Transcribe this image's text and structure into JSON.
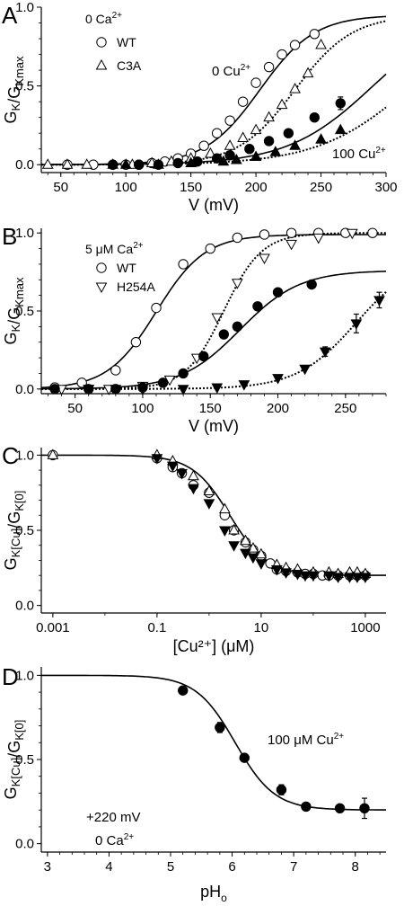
{
  "figure": {
    "panels": [
      {
        "letter": "A",
        "legend": {
          "title_text": "0 Ca",
          "title_sup": "2+",
          "entries": [
            {
              "label": "WT",
              "marker": "circle-open"
            },
            {
              "label": "C3A",
              "marker": "triangle-up-open"
            }
          ]
        },
        "annotations": [
          {
            "text": "0 Cu",
            "sup": "2+"
          },
          {
            "text": "100 Cu",
            "sup": "2+"
          }
        ]
      },
      {
        "letter": "B",
        "legend": {
          "title_text": "5 μM Ca",
          "title_sup": "2+",
          "entries": [
            {
              "label": "WT",
              "marker": "circle-open"
            },
            {
              "label": "H254A",
              "marker": "triangle-down-open"
            }
          ]
        },
        "annotations": []
      },
      {
        "letter": "C",
        "legend": null,
        "annotations": []
      },
      {
        "letter": "D",
        "legend": null,
        "annotations": [
          {
            "text": "100 μM Cu",
            "sup": "2+"
          },
          {
            "text": "+220 mV",
            "sup": ""
          },
          {
            "text": "0 Ca",
            "sup": "2+"
          }
        ]
      }
    ]
  },
  "chart_data": [
    {
      "type": "scatter",
      "panel": "A",
      "xlabel": "V (mV)",
      "ylabel": "G_K/G_Kmax",
      "xlim": [
        35,
        300
      ],
      "ylim": [
        -0.05,
        1.0
      ],
      "xticks": [
        50,
        100,
        150,
        200,
        250,
        300
      ],
      "yticks": [
        0.0,
        0.5,
        1.0
      ],
      "ytick_labels": [
        "0.0",
        "0.5",
        "1.0"
      ],
      "series": [
        {
          "name": "WT",
          "marker": "circle-open",
          "x": [
            55,
            75,
            90,
            100,
            110,
            120,
            130,
            140,
            150,
            160,
            170,
            180,
            190,
            200,
            210,
            220,
            230,
            245
          ],
          "y": [
            0.0,
            0.0,
            0.0,
            0.0,
            0.0,
            0.01,
            0.02,
            0.04,
            0.07,
            0.12,
            0.2,
            0.28,
            0.4,
            0.52,
            0.62,
            0.7,
            0.76,
            0.83
          ]
        },
        {
          "x": [
            40,
            55,
            70,
            90,
            105,
            120,
            135,
            150,
            165,
            180,
            190,
            200,
            210,
            220,
            230,
            240,
            250
          ],
          "y": [
            0.0,
            0.0,
            0.0,
            0.0,
            0.0,
            0.01,
            0.02,
            0.04,
            0.07,
            0.12,
            0.17,
            0.22,
            0.3,
            0.38,
            0.48,
            0.58,
            0.76
          ],
          "marker": "triangle-up-open"
        },
        {
          "x": [
            90,
            110,
            125,
            140,
            155,
            170,
            180,
            195,
            210,
            225,
            245,
            265
          ],
          "y": [
            0.0,
            0.0,
            0.0,
            0.01,
            0.02,
            0.04,
            0.06,
            0.1,
            0.15,
            0.2,
            0.3,
            0.39
          ],
          "y_err": [
            0,
            0,
            0,
            0,
            0,
            0,
            0,
            0,
            0,
            0,
            0,
            0.04
          ],
          "marker": "circle-filled"
        },
        {
          "x": [
            100,
            125,
            150,
            175,
            185,
            200,
            215,
            230,
            250,
            265
          ],
          "y": [
            0.0,
            0.0,
            0.01,
            0.02,
            0.03,
            0.05,
            0.08,
            0.12,
            0.16,
            0.22
          ],
          "marker": "triangle-up-filled"
        }
      ],
      "fits": [
        {
          "for": "WT",
          "style": "solid",
          "model": "boltzmann",
          "max": 0.95,
          "v_half": 203,
          "slope": 21
        },
        {
          "style": "dotted",
          "model": "boltzmann",
          "max": 0.95,
          "v_half": 230,
          "slope": 22
        },
        {
          "style": "solid",
          "model": "boltzmann",
          "max": 1.0,
          "v_half": 290,
          "slope": 33
        },
        {
          "style": "dotted",
          "model": "boltzmann",
          "max": 1.0,
          "v_half": 320,
          "slope": 36
        }
      ]
    },
    {
      "type": "scatter",
      "panel": "B",
      "xlabel": "V (mV)",
      "ylabel": "G_K/G_Kmax",
      "xlim": [
        25,
        280
      ],
      "ylim": [
        -0.03,
        1.03
      ],
      "xticks": [
        50,
        100,
        150,
        200,
        250
      ],
      "yticks": [
        0.0,
        0.5,
        1.0
      ],
      "ytick_labels": [
        "0.0",
        "0.5",
        "1.0"
      ],
      "series": [
        {
          "name": "WT",
          "marker": "circle-open",
          "x": [
            35,
            55,
            80,
            95,
            110,
            130,
            150,
            170,
            190,
            210,
            230,
            250,
            270
          ],
          "y": [
            0.01,
            0.04,
            0.12,
            0.3,
            0.52,
            0.8,
            0.9,
            0.97,
            0.99,
            1.0,
            1.0,
            1.0,
            1.0
          ]
        },
        {
          "name": "H254A",
          "marker": "triangle-down-open",
          "x": [
            40,
            60,
            75,
            100,
            120,
            140,
            155,
            170,
            190,
            210,
            230,
            255
          ],
          "y": [
            0.0,
            0.0,
            0.0,
            0.02,
            0.06,
            0.2,
            0.46,
            0.68,
            0.84,
            0.93,
            0.97,
            1.0
          ]
        },
        {
          "x": [
            35,
            60,
            80,
            100,
            115,
            130,
            145,
            160,
            170,
            185,
            200,
            225
          ],
          "y": [
            0.0,
            0.0,
            0.0,
            0.01,
            0.04,
            0.1,
            0.21,
            0.35,
            0.4,
            0.53,
            0.62,
            0.67
          ],
          "marker": "circle-filled"
        },
        {
          "x": [
            60,
            80,
            100,
            130,
            155,
            175,
            200,
            220,
            235,
            258,
            275
          ],
          "y": [
            0.0,
            0.0,
            0.0,
            0.0,
            0.01,
            0.03,
            0.07,
            0.13,
            0.24,
            0.42,
            0.57
          ],
          "y_err": [
            0,
            0,
            0,
            0,
            0,
            0,
            0,
            0,
            0.03,
            0.06,
            0.05
          ],
          "marker": "triangle-down-filled"
        }
      ],
      "fits": [
        {
          "for": "WT",
          "style": "solid",
          "model": "boltzmann",
          "max": 0.99,
          "v_half": 110,
          "slope": 18
        },
        {
          "for": "H254A",
          "style": "dotted",
          "model": "boltzmann",
          "max": 1.0,
          "v_half": 160,
          "slope": 14
        },
        {
          "style": "solid",
          "model": "boltzmann",
          "max": 0.76,
          "v_half": 172,
          "slope": 22
        },
        {
          "style": "dotted",
          "model": "boltzmann",
          "max": 0.85,
          "v_half": 258,
          "slope": 22
        }
      ]
    },
    {
      "type": "scatter",
      "panel": "C",
      "xlabel": "[Cu²⁺] (μM)",
      "ylabel": "G_K[Cu]/G_K[0]",
      "x_scale": "log",
      "xlim": [
        0.0006,
        2500
      ],
      "ylim": [
        -0.05,
        1.05
      ],
      "xticks": [
        0.001,
        0.1,
        10,
        1000
      ],
      "xtick_labels": [
        "0.001",
        "0.1",
        "10",
        "1000"
      ],
      "yticks": [
        0.0,
        0.5,
        1.0
      ],
      "ytick_labels": [
        "0.0",
        "0.5",
        "1.0"
      ],
      "series": [
        {
          "marker": "circle-open",
          "x": [
            0.001,
            0.1,
            0.2,
            0.3,
            0.5,
            1,
            2,
            3,
            5,
            7,
            10,
            15,
            20,
            30,
            50,
            70,
            100,
            150,
            200,
            300,
            500,
            700,
            1000
          ],
          "y": [
            1.0,
            0.98,
            0.92,
            0.88,
            0.8,
            0.75,
            0.6,
            0.5,
            0.42,
            0.37,
            0.33,
            0.28,
            0.24,
            0.23,
            0.22,
            0.21,
            0.21,
            0.2,
            0.2,
            0.2,
            0.2,
            0.2,
            0.2
          ]
        },
        {
          "marker": "triangle-up-open",
          "x": [
            0.001,
            0.1,
            0.2,
            0.5,
            1,
            2,
            3,
            5,
            7,
            10,
            20,
            30,
            50,
            100,
            200,
            300,
            500,
            700,
            1000
          ],
          "y": [
            1.0,
            1.0,
            0.96,
            0.86,
            0.76,
            0.64,
            0.5,
            0.43,
            0.38,
            0.34,
            0.27,
            0.25,
            0.24,
            0.22,
            0.22,
            0.21,
            0.22,
            0.22,
            0.21
          ]
        },
        {
          "marker": "triangle-down-filled",
          "x": [
            0.1,
            0.2,
            0.3,
            0.5,
            1,
            2,
            3,
            5,
            7,
            10,
            20,
            30,
            50,
            70,
            100,
            200,
            300,
            500,
            700,
            1000
          ],
          "y": [
            0.98,
            0.93,
            0.88,
            0.78,
            0.68,
            0.5,
            0.4,
            0.35,
            0.32,
            0.28,
            0.24,
            0.22,
            0.21,
            0.2,
            0.2,
            0.2,
            0.19,
            0.19,
            0.19,
            0.19
          ]
        }
      ],
      "fits": [
        {
          "style": "solid",
          "model": "hill",
          "top": 1.0,
          "bottom": 0.2,
          "ic50": 2.5,
          "n": 1.2
        }
      ]
    },
    {
      "type": "scatter",
      "panel": "D",
      "xlabel": "pH_o",
      "ylabel": "G_K[Cu]/G_K[0]",
      "xlim": [
        2.9,
        8.5
      ],
      "ylim": [
        -0.05,
        1.05
      ],
      "xticks": [
        3,
        4,
        5,
        6,
        7,
        8
      ],
      "yticks": [
        0.0,
        0.5,
        1.0
      ],
      "ytick_labels": [
        "0.0",
        "0.5",
        "1.0"
      ],
      "series": [
        {
          "marker": "circle-filled",
          "x": [
            5.2,
            5.8,
            6.2,
            6.8,
            7.2,
            7.75,
            8.15
          ],
          "y": [
            0.91,
            0.69,
            0.51,
            0.32,
            0.22,
            0.21,
            0.21
          ],
          "y_err": [
            0,
            0.03,
            0,
            0.03,
            0,
            0,
            0.06
          ]
        }
      ],
      "fits": [
        {
          "style": "solid",
          "model": "sigmoid",
          "top": 1.0,
          "bottom": 0.2,
          "mid": 6.05,
          "k": 0.32
        }
      ]
    }
  ]
}
